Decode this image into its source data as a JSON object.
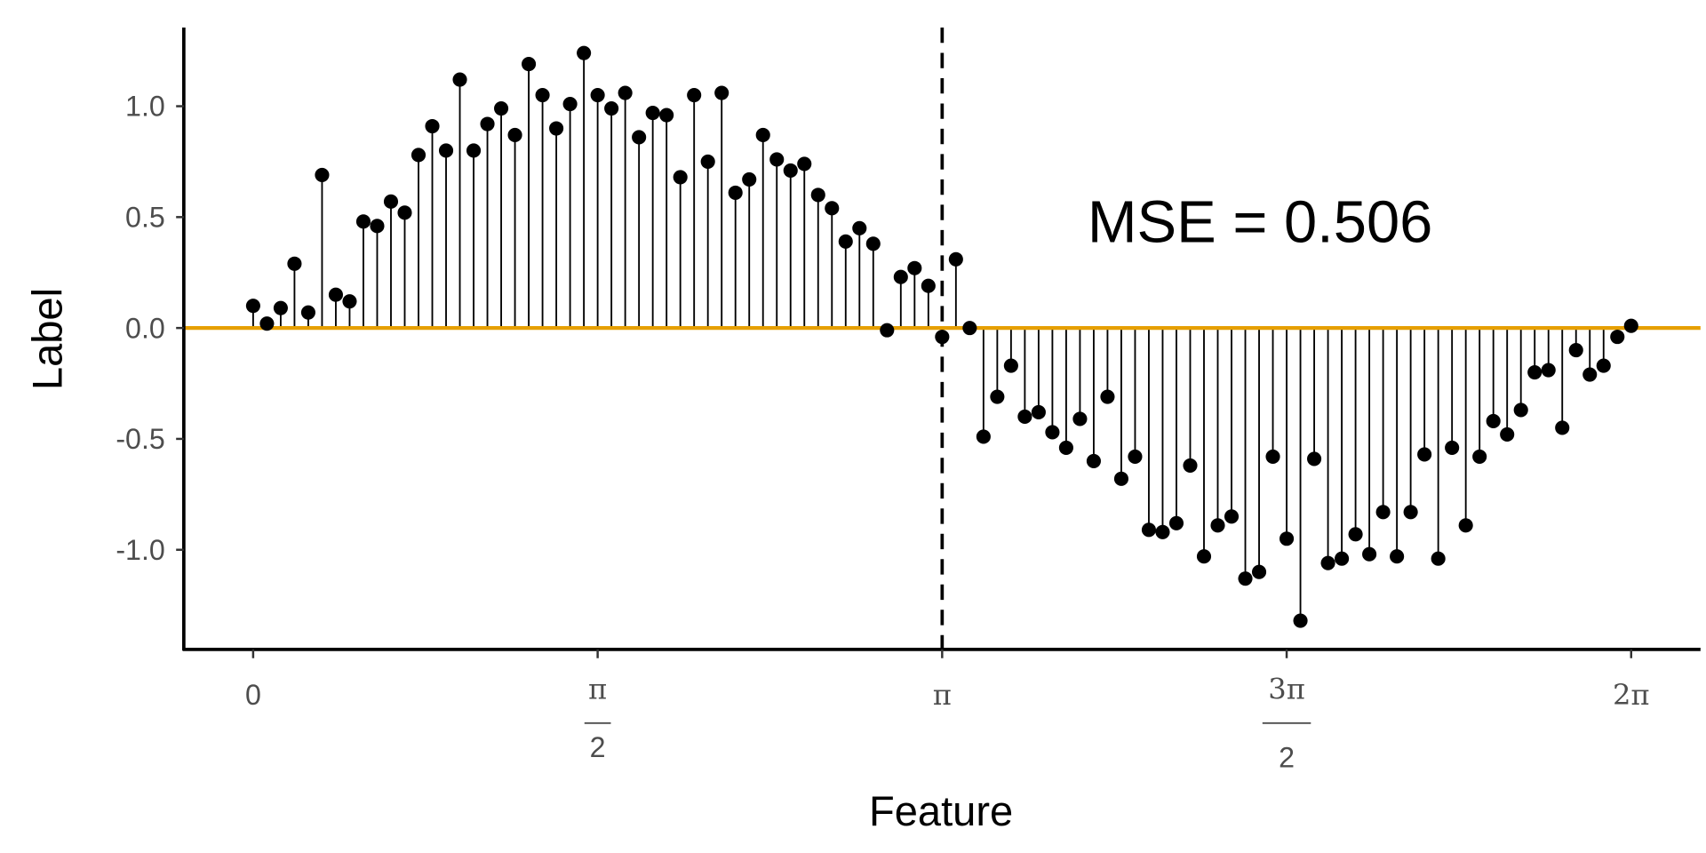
{
  "chart_data": {
    "type": "scatter",
    "subtype": "lollipop",
    "title": "",
    "xlabel": "Feature",
    "ylabel": "Label",
    "annotation": "MSE = 0.506",
    "xlim": [
      -0.32,
      6.7
    ],
    "ylim": [
      -1.43,
      1.36
    ],
    "grid": false,
    "x_ticks": [
      {
        "value": 0,
        "label": "0"
      },
      {
        "value": 1.5708,
        "num": "π",
        "den": "2"
      },
      {
        "value": 3.1416,
        "label": "π"
      },
      {
        "value": 4.7124,
        "num": "3π",
        "den": "2"
      },
      {
        "value": 6.2832,
        "label": "2π"
      }
    ],
    "y_ticks": [
      {
        "value": 1.0,
        "label": "1.0"
      },
      {
        "value": 0.5,
        "label": "0.5"
      },
      {
        "value": 0,
        "label": "0.0"
      },
      {
        "value": -0.5,
        "label": "-0.5"
      },
      {
        "value": -1.0,
        "label": "-1.0"
      }
    ],
    "x_formula": "2*pi*i/100, i=0..100",
    "y": [
      0.1,
      0.02,
      0.09,
      0.29,
      0.07,
      0.69,
      0.15,
      0.12,
      0.48,
      0.46,
      0.57,
      0.52,
      0.78,
      0.91,
      0.8,
      1.12,
      0.8,
      0.92,
      0.99,
      0.87,
      1.19,
      1.05,
      0.9,
      1.01,
      1.24,
      1.05,
      0.99,
      1.06,
      0.86,
      0.97,
      0.96,
      0.68,
      1.05,
      0.75,
      1.06,
      0.61,
      0.67,
      0.87,
      0.76,
      0.71,
      0.74,
      0.6,
      0.54,
      0.39,
      0.45,
      0.38,
      -0.01,
      0.23,
      0.27,
      0.19,
      -0.04,
      0.31,
      0.0,
      -0.49,
      -0.31,
      -0.17,
      -0.4,
      -0.38,
      -0.47,
      -0.54,
      -0.41,
      -0.6,
      -0.31,
      -0.68,
      -0.58,
      -0.91,
      -0.92,
      -0.88,
      -0.62,
      -1.03,
      -0.89,
      -0.85,
      -1.13,
      -1.1,
      -0.58,
      -0.95,
      -1.32,
      -0.59,
      -1.06,
      -1.04,
      -0.93,
      -1.02,
      -0.83,
      -1.03,
      -0.83,
      -0.57,
      -1.04,
      -0.54,
      -0.89,
      -0.58,
      -0.42,
      -0.48,
      -0.37,
      -0.2,
      -0.19,
      -0.45,
      -0.1,
      -0.21,
      -0.17,
      -0.04,
      0.01
    ],
    "model_line": {
      "y": 0,
      "color": "#E69F00"
    },
    "split_line": {
      "x": 3.1416,
      "style": "dashed",
      "color": "#000000"
    },
    "point_color": "#000000"
  }
}
